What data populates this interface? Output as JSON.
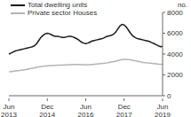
{
  "chart_data": {
    "type": "line",
    "ylabel": "no.",
    "legend": "upper left",
    "grid": false,
    "categories": [
      "Jun 2013",
      null,
      null,
      null,
      null,
      null,
      null,
      null,
      null,
      null,
      null,
      null,
      null,
      null,
      null,
      null,
      null,
      null,
      "Dec 2014",
      null,
      null,
      null,
      null,
      null,
      null,
      null,
      null,
      null,
      null,
      null,
      null,
      null,
      null,
      null,
      null,
      null,
      "Jun 2016",
      null,
      null,
      null,
      null,
      null,
      null,
      null,
      null,
      null,
      null,
      null,
      null,
      null,
      null,
      null,
      null,
      null,
      "Dec 2017",
      null,
      null,
      null,
      null,
      null,
      null,
      null,
      null,
      null,
      null,
      null,
      null,
      null,
      null,
      null,
      null,
      null,
      "Jun 2019"
    ],
    "ylim": [
      0,
      8000
    ],
    "yticks": [
      0,
      2000,
      4000,
      6000,
      8000
    ],
    "series": [
      {
        "name": "Total dwelling units",
        "color": "#1a1a1a",
        "values": [
          4000,
          4100,
          4200,
          4300,
          4350,
          4400,
          4450,
          4500,
          4550,
          4600,
          4650,
          4700,
          4800,
          5000,
          5300,
          5600,
          5800,
          5950,
          6000,
          5950,
          5850,
          5750,
          5700,
          5700,
          5650,
          5600,
          5600,
          5650,
          5700,
          5700,
          5650,
          5550,
          5450,
          5300,
          5150,
          5050,
          5000,
          5050,
          5150,
          5250,
          5300,
          5350,
          5400,
          5450,
          5500,
          5600,
          5700,
          5750,
          5800,
          5900,
          6100,
          6400,
          6700,
          6850,
          6800,
          6600,
          6300,
          6000,
          5750,
          5600,
          5500,
          5450,
          5400,
          5350,
          5300,
          5250,
          5200,
          5100,
          5000,
          4900,
          4800,
          4700,
          4750
        ]
      },
      {
        "name": "Private sector Houses",
        "color": "#b3b3b3",
        "values": [
          2300,
          2320,
          2350,
          2380,
          2400,
          2420,
          2450,
          2480,
          2520,
          2560,
          2600,
          2640,
          2680,
          2720,
          2760,
          2800,
          2830,
          2860,
          2880,
          2900,
          2900,
          2910,
          2920,
          2930,
          2930,
          2940,
          2950,
          2960,
          2970,
          2980,
          2990,
          3000,
          3000,
          2990,
          2980,
          2970,
          2960,
          2970,
          2980,
          3000,
          3020,
          3040,
          3060,
          3080,
          3100,
          3130,
          3160,
          3200,
          3240,
          3280,
          3320,
          3370,
          3420,
          3460,
          3480,
          3490,
          3470,
          3440,
          3400,
          3360,
          3320,
          3280,
          3240,
          3200,
          3170,
          3140,
          3120,
          3100,
          3080,
          3060,
          3040,
          3030,
          3020
        ]
      }
    ]
  }
}
